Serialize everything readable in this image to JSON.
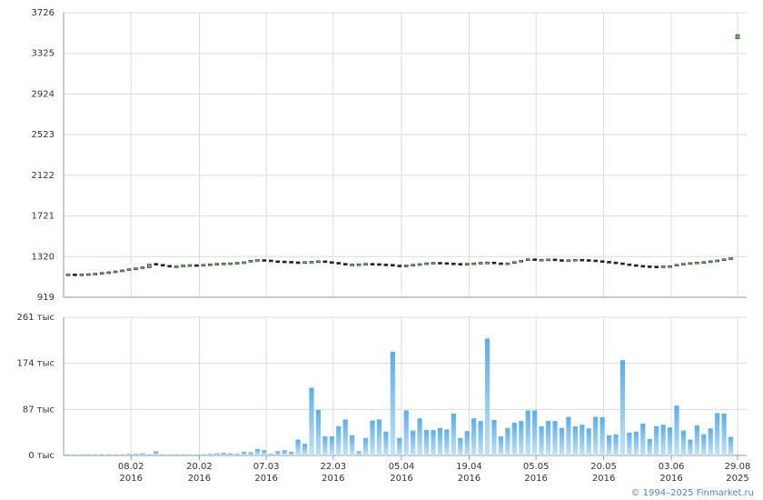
{
  "chart_data": {
    "type": "candlestick",
    "open": [
      1135,
      1140,
      1138,
      1140,
      1143,
      1148,
      1155,
      1162,
      1170,
      1180,
      1192,
      1200,
      1210,
      1245,
      1235,
      1225,
      1215,
      1220,
      1228,
      1232,
      1230,
      1235,
      1240,
      1245,
      1248,
      1250,
      1255,
      1260,
      1275,
      1282,
      1278,
      1270,
      1268,
      1265,
      1260,
      1255,
      1262,
      1265,
      1270,
      1262,
      1255,
      1245,
      1235,
      1238,
      1240,
      1245,
      1242,
      1238,
      1235,
      1228,
      1225,
      1228,
      1235,
      1242,
      1250,
      1255,
      1252,
      1248,
      1245,
      1242,
      1245,
      1250,
      1255,
      1258,
      1250,
      1245,
      1250,
      1262,
      1275,
      1290,
      1285,
      1285,
      1288,
      1282,
      1278,
      1280,
      1285,
      1282,
      1278,
      1272,
      1265,
      1258,
      1250,
      1240,
      1232,
      1225,
      1220,
      1218,
      1215,
      1220,
      1222,
      1235,
      1245,
      1252,
      1258,
      1262,
      1270,
      1278,
      1290,
      3470
    ],
    "close": [
      1140,
      1138,
      1140,
      1143,
      1148,
      1155,
      1162,
      1170,
      1180,
      1192,
      1200,
      1210,
      1245,
      1235,
      1225,
      1215,
      1220,
      1228,
      1232,
      1230,
      1235,
      1240,
      1245,
      1248,
      1250,
      1255,
      1260,
      1275,
      1282,
      1278,
      1270,
      1268,
      1265,
      1260,
      1255,
      1262,
      1265,
      1270,
      1262,
      1255,
      1245,
      1235,
      1238,
      1240,
      1245,
      1242,
      1238,
      1235,
      1228,
      1225,
      1228,
      1235,
      1242,
      1250,
      1255,
      1252,
      1248,
      1245,
      1242,
      1245,
      1250,
      1255,
      1258,
      1250,
      1245,
      1250,
      1262,
      1275,
      1290,
      1285,
      1285,
      1288,
      1282,
      1278,
      1280,
      1285,
      1282,
      1278,
      1272,
      1265,
      1258,
      1250,
      1240,
      1232,
      1225,
      1220,
      1218,
      1215,
      1220,
      1222,
      1235,
      1245,
      1252,
      1258,
      1262,
      1270,
      1278,
      1290,
      1300,
      3510
    ],
    "volume": [
      2,
      2,
      2,
      2,
      2,
      2,
      2,
      2,
      2,
      3,
      3,
      4,
      2,
      8,
      2,
      2,
      2,
      2,
      2,
      2,
      2,
      3,
      4,
      5,
      4,
      3,
      7,
      6,
      12,
      10,
      3,
      8,
      10,
      7,
      30,
      22,
      128,
      86,
      36,
      36,
      55,
      68,
      38,
      8,
      33,
      66,
      68,
      45,
      196,
      33,
      85,
      47,
      70,
      48,
      48,
      52,
      49,
      79,
      33,
      46,
      70,
      65,
      221,
      67,
      36,
      52,
      62,
      65,
      85,
      85,
      55,
      65,
      65,
      52,
      73,
      55,
      58,
      51,
      73,
      72,
      38,
      40,
      180,
      43,
      45,
      60,
      31,
      55,
      58,
      53,
      94,
      47,
      30,
      57,
      40,
      51,
      80,
      79,
      35,
      2
    ],
    "up_color": "#5cc05c",
    "down_color": "#222222",
    "bar_color": "#7cbff0",
    "ylim": [
      919,
      3726
    ],
    "yticks": [
      919,
      1320,
      1721,
      2122,
      2523,
      2924,
      3325,
      3726
    ],
    "y2lim": [
      0,
      261
    ],
    "y2ticks": [
      {
        "value": 0,
        "label": "0 тыс"
      },
      {
        "value": 87,
        "label": "87 тыс"
      },
      {
        "value": 174,
        "label": "174 тыс"
      },
      {
        "value": 261,
        "label": "261 тыс"
      }
    ],
    "xticks": [
      {
        "value": 9.3,
        "label": "08.02",
        "year": "2016"
      },
      {
        "value": 19.4,
        "label": "20.02",
        "year": "2016"
      },
      {
        "value": 29.3,
        "label": "07.03",
        "year": "2016"
      },
      {
        "value": 39.2,
        "label": "22.03",
        "year": "2016"
      },
      {
        "value": 49.3,
        "label": "05.04",
        "year": "2016"
      },
      {
        "value": 59.3,
        "label": "19.04",
        "year": "2016"
      },
      {
        "value": 69.2,
        "label": "05.05",
        "year": "2016"
      },
      {
        "value": 79.2,
        "label": "20.05",
        "year": "2016"
      },
      {
        "value": 89.2,
        "label": "03.06",
        "year": "2016"
      },
      {
        "value": 99,
        "label": "29.08",
        "year": "2025"
      }
    ],
    "grid": true,
    "footer": "© 1994–2025 Finmarket.ru"
  }
}
